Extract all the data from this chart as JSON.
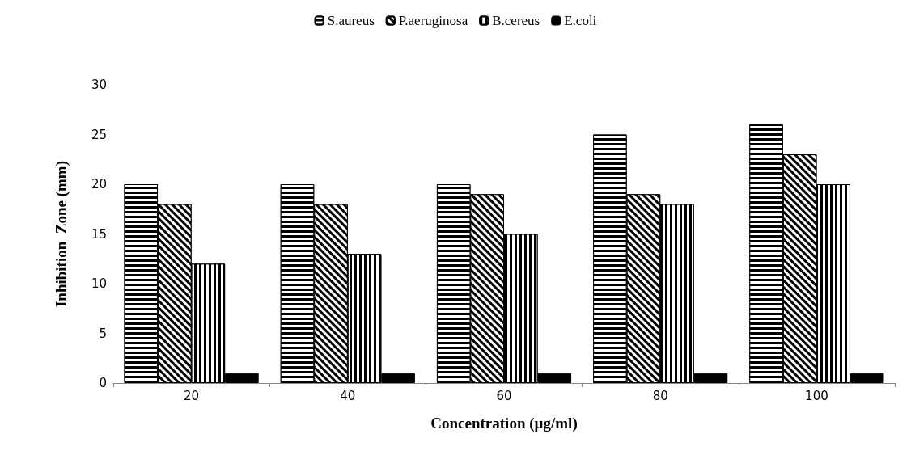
{
  "chart_data": {
    "type": "bar",
    "xlabel": "Concentration (µg/ml)",
    "ylabel": "Inhibition  Zone (mm)",
    "categories": [
      "20",
      "40",
      "60",
      "80",
      "100"
    ],
    "series": [
      {
        "name": "S.aureus",
        "color": "#000000",
        "values": [
          20,
          20,
          20,
          25,
          26
        ]
      },
      {
        "name": "P.aeruginosa",
        "color": "#000000",
        "values": [
          18,
          18,
          19,
          19,
          23
        ]
      },
      {
        "name": "B.cereus",
        "color": "#000000",
        "values": [
          12,
          13,
          15,
          18,
          20
        ]
      },
      {
        "name": "E.coli",
        "color": "#000000",
        "values": [
          1,
          1,
          1,
          1,
          1
        ]
      }
    ],
    "ylim": [
      0,
      30
    ],
    "yticks": [
      0,
      5,
      10,
      15,
      20,
      25,
      30
    ],
    "grid": false,
    "legend": "top"
  }
}
